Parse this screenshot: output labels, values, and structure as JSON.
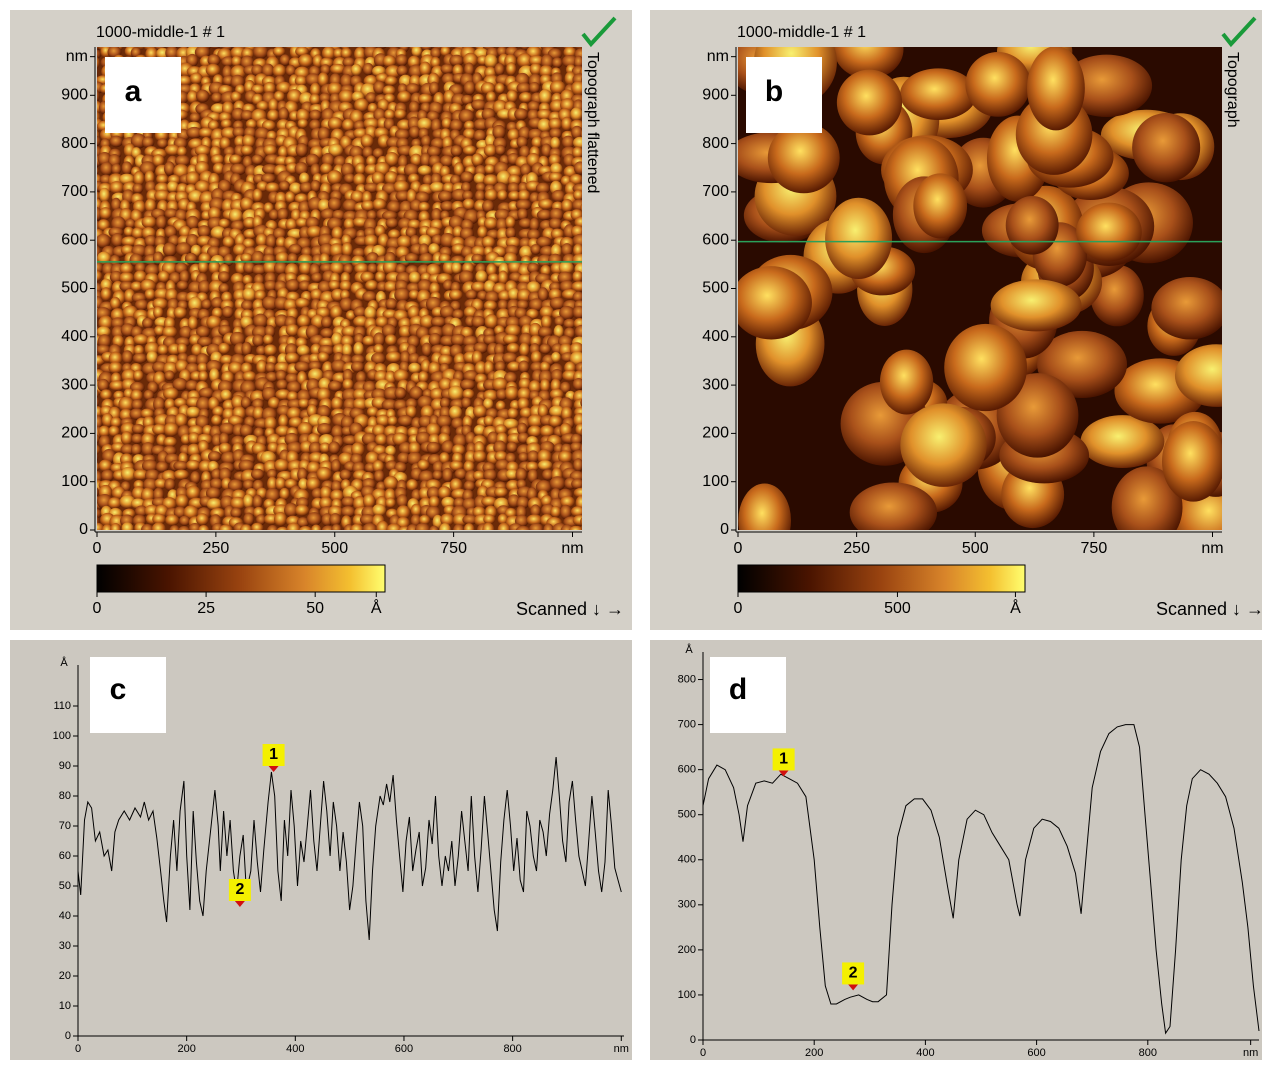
{
  "chart_data": [
    {
      "type": "image",
      "title": "1000-middle-1 # 1",
      "panel_label": "a",
      "side_label": "Topograph flattened",
      "scan_label": "Scanned ↓ →",
      "xlim": [
        0,
        1020
      ],
      "ylim": [
        0,
        1000
      ],
      "xticks": [
        0,
        250,
        500,
        750,
        {
          "value": 1000,
          "label": "nm"
        }
      ],
      "yticks": [
        0,
        100,
        200,
        300,
        400,
        500,
        600,
        700,
        800,
        900,
        {
          "value": 980,
          "label": "nm"
        }
      ],
      "profile_y": 555,
      "profile_color": "#2aa05a",
      "colorbar": {
        "lim": [
          0,
          66
        ],
        "ticks": [
          0,
          25,
          50,
          {
            "value": 64,
            "label": "Å"
          }
        ]
      }
    },
    {
      "type": "image",
      "title": "1000-middle-1 # 1",
      "panel_label": "b",
      "side_label": "Topograph",
      "scan_label": "Scanned ↓ →",
      "xlim": [
        0,
        1020
      ],
      "ylim": [
        0,
        1000
      ],
      "xticks": [
        0,
        250,
        500,
        750,
        {
          "value": 1000,
          "label": "nm"
        }
      ],
      "yticks": [
        0,
        100,
        200,
        300,
        400,
        500,
        600,
        700,
        800,
        900,
        {
          "value": 980,
          "label": "nm"
        }
      ],
      "profile_y": 597,
      "profile_color": "#2aa05a",
      "colorbar": {
        "lim": [
          0,
          900
        ],
        "ticks": [
          0,
          500,
          {
            "value": 870,
            "label": "Å"
          }
        ]
      }
    },
    {
      "type": "line",
      "panel_label": "c",
      "ylabel": "Å",
      "color": "#000000",
      "x": [
        0,
        5,
        12,
        18,
        25,
        32,
        40,
        48,
        55,
        62,
        68,
        75,
        85,
        95,
        105,
        115,
        122,
        130,
        138,
        145,
        152,
        158,
        163,
        170,
        176,
        182,
        188,
        195,
        200,
        206,
        212,
        218,
        224,
        230,
        236,
        245,
        252,
        258,
        262,
        268,
        274,
        280,
        286,
        292,
        298,
        304,
        310,
        318,
        324,
        330,
        336,
        342,
        350,
        356,
        362,
        368,
        374,
        380,
        386,
        392,
        398,
        404,
        410,
        416,
        422,
        428,
        434,
        440,
        446,
        452,
        458,
        464,
        470,
        476,
        482,
        488,
        494,
        500,
        506,
        512,
        518,
        524,
        530,
        536,
        542,
        548,
        556,
        562,
        568,
        574,
        580,
        586,
        592,
        598,
        604,
        610,
        616,
        622,
        628,
        634,
        640,
        646,
        652,
        658,
        664,
        670,
        676,
        682,
        688,
        694,
        700,
        706,
        712,
        718,
        724,
        730,
        736,
        742,
        748,
        754,
        760,
        766,
        772,
        778,
        784,
        790,
        796,
        802,
        808,
        814,
        820,
        826,
        832,
        838,
        844,
        850,
        856,
        862,
        868,
        874,
        880,
        886,
        892,
        898,
        904,
        910,
        916,
        922,
        928,
        934,
        940,
        946,
        952,
        958,
        964,
        970,
        976,
        982,
        988,
        994,
        1000
      ],
      "values": [
        55,
        47,
        72,
        78,
        76,
        65,
        68,
        60,
        62,
        55,
        68,
        72,
        75,
        72,
        76,
        73,
        78,
        72,
        75,
        66,
        55,
        45,
        38,
        60,
        72,
        55,
        75,
        85,
        60,
        42,
        75,
        58,
        45,
        40,
        55,
        70,
        82,
        70,
        55,
        75,
        60,
        72,
        55,
        48,
        60,
        67,
        48,
        55,
        72,
        58,
        48,
        62,
        78,
        88,
        80,
        55,
        45,
        72,
        60,
        82,
        70,
        50,
        65,
        58,
        70,
        82,
        65,
        55,
        70,
        85,
        75,
        60,
        78,
        70,
        55,
        68,
        58,
        42,
        50,
        65,
        78,
        70,
        45,
        32,
        55,
        70,
        80,
        77,
        84,
        78,
        87,
        72,
        60,
        48,
        65,
        73,
        55,
        62,
        68,
        50,
        56,
        72,
        64,
        80,
        60,
        50,
        60,
        55,
        65,
        50,
        60,
        75,
        65,
        55,
        80,
        60,
        48,
        62,
        80,
        68,
        55,
        42,
        35,
        58,
        72,
        82,
        70,
        55,
        66,
        52,
        48,
        75,
        70,
        60,
        55,
        72,
        68,
        60,
        74,
        82,
        93,
        80,
        65,
        58,
        78,
        85,
        72,
        60,
        55,
        50,
        65,
        80,
        68,
        55,
        48,
        58,
        82,
        70,
        56,
        52,
        48
      ],
      "xlim": [
        0,
        1005
      ],
      "ylim": [
        0,
        125
      ],
      "xticks": [
        0,
        200,
        400,
        600,
        800,
        {
          "value": 1000,
          "label": "nm"
        }
      ],
      "yticks": [
        0,
        10,
        20,
        30,
        40,
        50,
        60,
        70,
        80,
        90,
        100,
        110
      ],
      "markers": [
        {
          "label": "1",
          "x": 360,
          "y": 88,
          "color": "#0a8a2a"
        },
        {
          "label": "2",
          "x": 298,
          "y": 43,
          "color": "#d01010"
        }
      ]
    },
    {
      "type": "line",
      "panel_label": "d",
      "ylabel": "Å",
      "color": "#000000",
      "x": [
        0,
        10,
        25,
        40,
        55,
        65,
        72,
        80,
        95,
        110,
        125,
        140,
        155,
        170,
        185,
        200,
        210,
        220,
        230,
        240,
        255,
        265,
        280,
        295,
        305,
        315,
        330,
        340,
        350,
        365,
        380,
        395,
        410,
        425,
        440,
        450,
        460,
        475,
        490,
        505,
        520,
        535,
        550,
        565,
        570,
        580,
        595,
        610,
        625,
        640,
        655,
        670,
        680,
        690,
        700,
        715,
        730,
        745,
        760,
        775,
        785,
        795,
        805,
        815,
        825,
        832,
        840,
        850,
        860,
        870,
        880,
        895,
        910,
        925,
        940,
        955,
        970,
        980,
        990,
        1000
      ],
      "values": [
        520,
        580,
        610,
        600,
        560,
        500,
        440,
        520,
        570,
        575,
        570,
        590,
        580,
        570,
        540,
        400,
        250,
        120,
        80,
        80,
        90,
        95,
        100,
        90,
        85,
        85,
        100,
        300,
        450,
        520,
        535,
        535,
        510,
        450,
        340,
        270,
        400,
        490,
        510,
        500,
        460,
        430,
        400,
        300,
        275,
        400,
        470,
        490,
        485,
        470,
        430,
        370,
        280,
        420,
        560,
        640,
        680,
        695,
        700,
        700,
        650,
        500,
        350,
        200,
        80,
        15,
        30,
        200,
        400,
        520,
        580,
        600,
        590,
        570,
        540,
        470,
        350,
        250,
        120,
        20
      ],
      "xlim": [
        0,
        1000
      ],
      "ylim": [
        0,
        870
      ],
      "xticks": [
        0,
        200,
        400,
        600,
        800,
        {
          "value": 985,
          "label": "nm"
        }
      ],
      "yticks": [
        0,
        100,
        200,
        300,
        400,
        500,
        600,
        700,
        800
      ],
      "markers": [
        {
          "label": "1",
          "x": 145,
          "y": 585,
          "color": "#0a8a2a"
        },
        {
          "label": "2",
          "x": 270,
          "y": 110,
          "color": "#d01010"
        }
      ]
    }
  ]
}
